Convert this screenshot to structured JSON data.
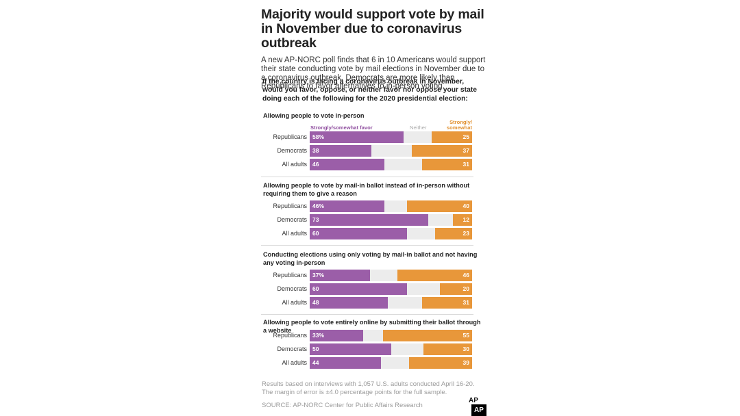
{
  "header": {
    "title": "Majority would support vote by mail in November due to coronavirus outbreak",
    "dek": "A new AP-NORC poll finds that 6 in 10 Americans would support their state conducting vote by mail elections in November due to a coronavirus outbreak. Democrats are more likely than Republicans to favor alternatives to in-person voting.",
    "question": "If the country is facing a coronavirus outbreak in November, would you favor, oppose, or neither favor nor oppose your state doing each of the following for the 2020 presidential election:"
  },
  "legend": {
    "favor": "Strongly/somewhat favor",
    "neither": "Neither",
    "oppose": "Strongly/ somewhat oppose"
  },
  "colors": {
    "favor": "#9b5ea8",
    "oppose": "#e8973a",
    "neither": "#ececec"
  },
  "chart_data": {
    "type": "bar",
    "stacked": true,
    "xlim": [
      0,
      100
    ],
    "panels": [
      {
        "title": "Allowing people to vote in-person",
        "rows": [
          {
            "label": "Republicans",
            "favor": 58,
            "favor_label": "58%",
            "oppose": 25,
            "oppose_label": "25"
          },
          {
            "label": "Democrats",
            "favor": 38,
            "favor_label": "38",
            "oppose": 37,
            "oppose_label": "37"
          },
          {
            "label": "All adults",
            "favor": 46,
            "favor_label": "46",
            "oppose": 31,
            "oppose_label": "31"
          }
        ]
      },
      {
        "title": "Allowing people to vote by mail-in ballot instead of in-person without requiring them to give a reason",
        "rows": [
          {
            "label": "Republicans",
            "favor": 46,
            "favor_label": "46%",
            "oppose": 40,
            "oppose_label": "40"
          },
          {
            "label": "Democrats",
            "favor": 73,
            "favor_label": "73",
            "oppose": 12,
            "oppose_label": "12"
          },
          {
            "label": "All adults",
            "favor": 60,
            "favor_label": "60",
            "oppose": 23,
            "oppose_label": "23"
          }
        ]
      },
      {
        "title": "Conducting elections using only voting by mail-in ballot and not having any voting in-person",
        "rows": [
          {
            "label": "Republicans",
            "favor": 37,
            "favor_label": "37%",
            "oppose": 46,
            "oppose_label": "46"
          },
          {
            "label": "Democrats",
            "favor": 60,
            "favor_label": "60",
            "oppose": 20,
            "oppose_label": "20"
          },
          {
            "label": "All adults",
            "favor": 48,
            "favor_label": "48",
            "oppose": 31,
            "oppose_label": "31"
          }
        ]
      },
      {
        "title": "Allowing people to vote entirely online by submitting their ballot through a website",
        "rows": [
          {
            "label": "Republicans",
            "favor": 33,
            "favor_label": "33%",
            "oppose": 55,
            "oppose_label": "55"
          },
          {
            "label": "Democrats",
            "favor": 50,
            "favor_label": "50",
            "oppose": 30,
            "oppose_label": "30"
          },
          {
            "label": "All adults",
            "favor": 44,
            "favor_label": "44",
            "oppose": 39,
            "oppose_label": "39"
          }
        ]
      }
    ]
  },
  "footer": {
    "note": "Results based on interviews with 1,057 U.S. adults conducted April 16-20. The margin of error is ±4.0 percentage points for the full sample.",
    "source": "SOURCE: AP-NORC Center for Public Affairs Research",
    "ap_mark": "AP",
    "ap_logo": "AP"
  }
}
